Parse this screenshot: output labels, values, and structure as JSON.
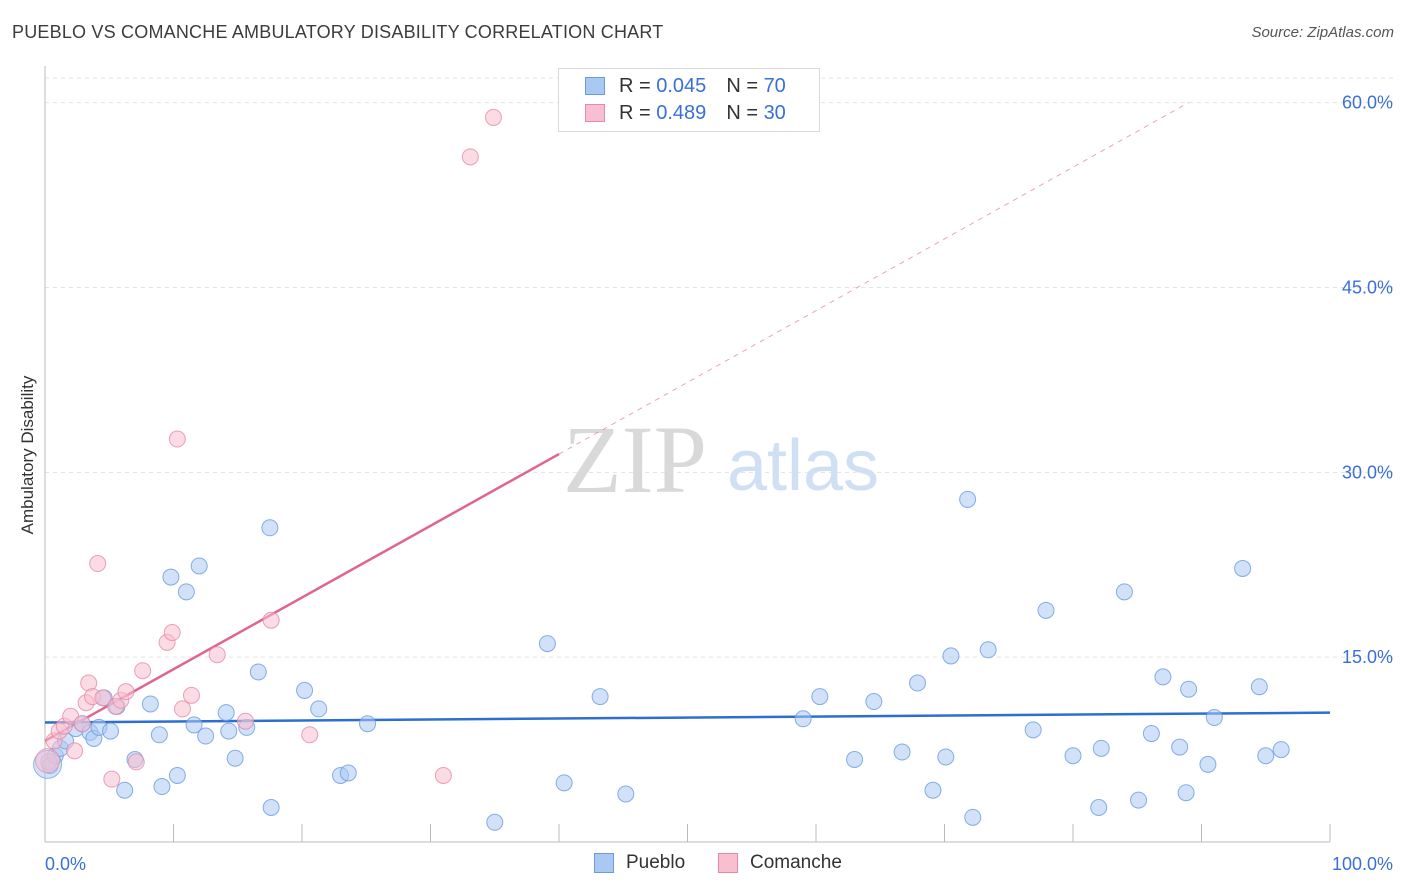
{
  "header": {
    "title": "PUEBLO VS COMANCHE AMBULATORY DISABILITY CORRELATION CHART",
    "source": "Source: ZipAtlas.com"
  },
  "watermark": {
    "zip": "ZIP",
    "atlas": "atlas"
  },
  "legend": {
    "rows": [
      {
        "r_label": "R =",
        "r_value": "0.045",
        "n_label": "N =",
        "n_value": "70",
        "color": "#a9c8f2",
        "border": "#6a9be0"
      },
      {
        "r_label": "R =",
        "r_value": "0.489",
        "n_label": "N =",
        "n_value": "30",
        "color": "#f7bfd0",
        "border": "#e58aa8"
      }
    ]
  },
  "colors": {
    "pueblo_fill": "#a9c8f2",
    "pueblo_stroke": "#6a9be0",
    "pueblo_line": "#2c6fd1",
    "comanche_fill": "#f7bfd0",
    "comanche_stroke": "#e58aa8",
    "comanche_line": "#e0658e",
    "axis_text": "#3a6fd8"
  },
  "chart_data": {
    "type": "scatter",
    "title": "PUEBLO VS COMANCHE AMBULATORY DISABILITY CORRELATION CHART",
    "xlabel": "",
    "ylabel": "Ambulatory Disability",
    "xlim": [
      0,
      100
    ],
    "ylim": [
      0,
      62
    ],
    "x_tick_labels": [
      "0.0%",
      "100.0%"
    ],
    "y_ticks": [
      15,
      30,
      45,
      60
    ],
    "y_tick_labels": [
      "15.0%",
      "30.0%",
      "45.0%",
      "60.0%"
    ],
    "grid": true,
    "legend_position": "top-center",
    "series": [
      {
        "name": "Pueblo",
        "r": 0.045,
        "n": 70,
        "trend": {
          "x0": 0,
          "y0": 9.7,
          "x1": 100,
          "y1": 10.5,
          "dashed_from": null
        },
        "points": [
          [
            0.4,
            6.2
          ],
          [
            0.8,
            7.0
          ],
          [
            1.2,
            7.6
          ],
          [
            1.6,
            8.2
          ],
          [
            2.4,
            9.2
          ],
          [
            2.9,
            9.6
          ],
          [
            3.5,
            8.9
          ],
          [
            3.8,
            8.4
          ],
          [
            4.2,
            9.3
          ],
          [
            4.6,
            11.7
          ],
          [
            5.1,
            9.0
          ],
          [
            5.6,
            11.0
          ],
          [
            6.2,
            4.2
          ],
          [
            7.0,
            6.7
          ],
          [
            8.2,
            11.2
          ],
          [
            8.9,
            8.7
          ],
          [
            9.1,
            4.5
          ],
          [
            9.8,
            21.5
          ],
          [
            10.3,
            5.4
          ],
          [
            11.0,
            20.3
          ],
          [
            11.6,
            9.5
          ],
          [
            12.0,
            22.4
          ],
          [
            12.5,
            8.6
          ],
          [
            14.1,
            10.5
          ],
          [
            14.3,
            9.0
          ],
          [
            14.8,
            6.8
          ],
          [
            15.7,
            9.3
          ],
          [
            16.6,
            13.8
          ],
          [
            17.5,
            25.5
          ],
          [
            17.6,
            2.8
          ],
          [
            20.2,
            12.3
          ],
          [
            21.3,
            10.8
          ],
          [
            23.0,
            5.4
          ],
          [
            23.6,
            5.6
          ],
          [
            25.1,
            9.6
          ],
          [
            35.0,
            1.6
          ],
          [
            39.1,
            16.1
          ],
          [
            40.4,
            4.8
          ],
          [
            43.2,
            11.8
          ],
          [
            45.2,
            3.9
          ],
          [
            59.0,
            10.0
          ],
          [
            60.3,
            11.8
          ],
          [
            63.0,
            6.7
          ],
          [
            64.5,
            11.4
          ],
          [
            66.7,
            7.3
          ],
          [
            67.9,
            12.9
          ],
          [
            69.1,
            4.2
          ],
          [
            70.1,
            6.9
          ],
          [
            70.5,
            15.1
          ],
          [
            71.8,
            27.8
          ],
          [
            72.2,
            2.0
          ],
          [
            73.4,
            15.6
          ],
          [
            76.9,
            9.1
          ],
          [
            77.9,
            18.8
          ],
          [
            80.0,
            7.0
          ],
          [
            82.0,
            2.8
          ],
          [
            82.2,
            7.6
          ],
          [
            84.0,
            20.3
          ],
          [
            85.1,
            3.4
          ],
          [
            86.1,
            8.8
          ],
          [
            87.0,
            13.4
          ],
          [
            88.3,
            7.7
          ],
          [
            88.8,
            4.0
          ],
          [
            89.0,
            12.4
          ],
          [
            90.5,
            6.3
          ],
          [
            91.0,
            10.1
          ],
          [
            93.2,
            22.2
          ],
          [
            94.5,
            12.6
          ],
          [
            95.0,
            7.0
          ],
          [
            96.2,
            7.5
          ]
        ]
      },
      {
        "name": "Comanche",
        "r": 0.489,
        "n": 30,
        "trend": {
          "x0": 0,
          "y0": 8.2,
          "x1": 89,
          "y1": 60.0,
          "dashed_from": 40
        },
        "points": [
          [
            0.3,
            6.5
          ],
          [
            0.7,
            8.2
          ],
          [
            1.1,
            9.0
          ],
          [
            1.5,
            9.4
          ],
          [
            2.0,
            10.2
          ],
          [
            2.3,
            7.4
          ],
          [
            2.9,
            9.6
          ],
          [
            3.2,
            11.3
          ],
          [
            3.4,
            12.9
          ],
          [
            3.7,
            11.8
          ],
          [
            4.1,
            22.6
          ],
          [
            4.5,
            11.7
          ],
          [
            5.2,
            5.1
          ],
          [
            5.5,
            11.0
          ],
          [
            5.9,
            11.5
          ],
          [
            6.3,
            12.2
          ],
          [
            7.1,
            6.5
          ],
          [
            7.6,
            13.9
          ],
          [
            9.5,
            16.2
          ],
          [
            9.9,
            17.0
          ],
          [
            10.3,
            32.7
          ],
          [
            10.7,
            10.8
          ],
          [
            11.4,
            11.9
          ],
          [
            13.4,
            15.2
          ],
          [
            15.6,
            9.8
          ],
          [
            17.6,
            18.0
          ],
          [
            20.6,
            8.7
          ],
          [
            31.0,
            5.4
          ],
          [
            33.1,
            55.6
          ],
          [
            34.9,
            58.8
          ]
        ]
      }
    ]
  }
}
